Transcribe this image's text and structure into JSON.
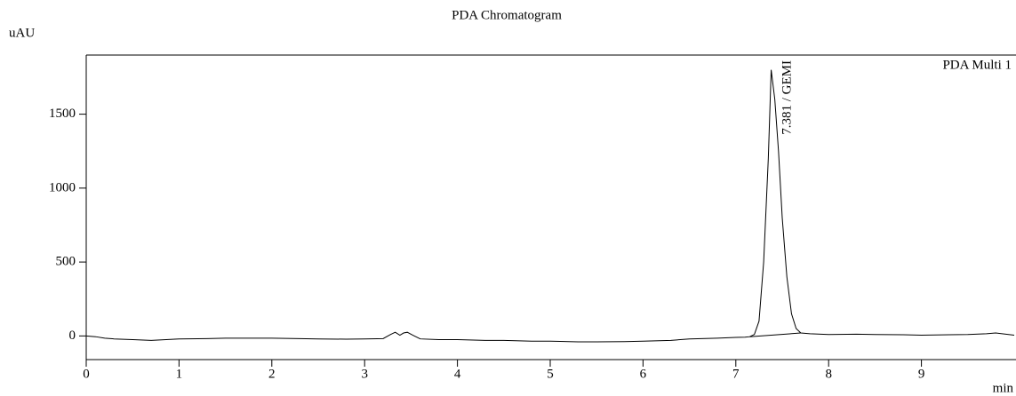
{
  "chart_data": {
    "type": "line",
    "title": "PDA Chromatogram",
    "y_label": "uAU",
    "x_label": "min",
    "annotation": "7.381 / GEMI",
    "xlim": [
      0,
      10
    ],
    "xticks": [
      0,
      1,
      2,
      3,
      4,
      5,
      6,
      7,
      8,
      9
    ],
    "ylim": [
      -160,
      1900
    ],
    "yticks": [
      0,
      500,
      1000,
      1500
    ],
    "series": [
      {
        "name": "PDA Multi 1",
        "color": "#000000",
        "x": [
          0,
          0.1,
          0.2,
          0.3,
          0.5,
          0.7,
          1.0,
          1.3,
          1.5,
          1.8,
          2.0,
          2.3,
          2.5,
          2.8,
          3.0,
          3.2,
          3.28,
          3.33,
          3.38,
          3.42,
          3.46,
          3.52,
          3.6,
          3.8,
          4.0,
          4.3,
          4.5,
          4.8,
          5.0,
          5.3,
          5.5,
          5.8,
          6.0,
          6.3,
          6.5,
          6.8,
          7.0,
          7.1,
          7.15,
          7.2,
          7.25,
          7.3,
          7.35,
          7.381,
          7.42,
          7.46,
          7.5,
          7.55,
          7.6,
          7.65,
          7.7,
          7.8,
          8.0,
          8.3,
          8.5,
          8.8,
          9.0,
          9.3,
          9.5,
          9.7,
          9.8,
          10.0
        ],
        "values": [
          0,
          -5,
          -15,
          -20,
          -25,
          -30,
          -20,
          -18,
          -15,
          -15,
          -15,
          -18,
          -20,
          -22,
          -20,
          -18,
          10,
          25,
          5,
          20,
          25,
          5,
          -20,
          -25,
          -25,
          -30,
          -30,
          -35,
          -35,
          -40,
          -40,
          -38,
          -35,
          -30,
          -20,
          -15,
          -10,
          -8,
          -5,
          10,
          100,
          500,
          1200,
          1800,
          1600,
          1250,
          800,
          400,
          150,
          50,
          20,
          15,
          10,
          12,
          10,
          8,
          5,
          8,
          10,
          15,
          20,
          5
        ]
      },
      {
        "color": "#000000",
        "x": [
          7.15,
          7.7
        ],
        "values": [
          -5,
          20
        ]
      }
    ]
  }
}
